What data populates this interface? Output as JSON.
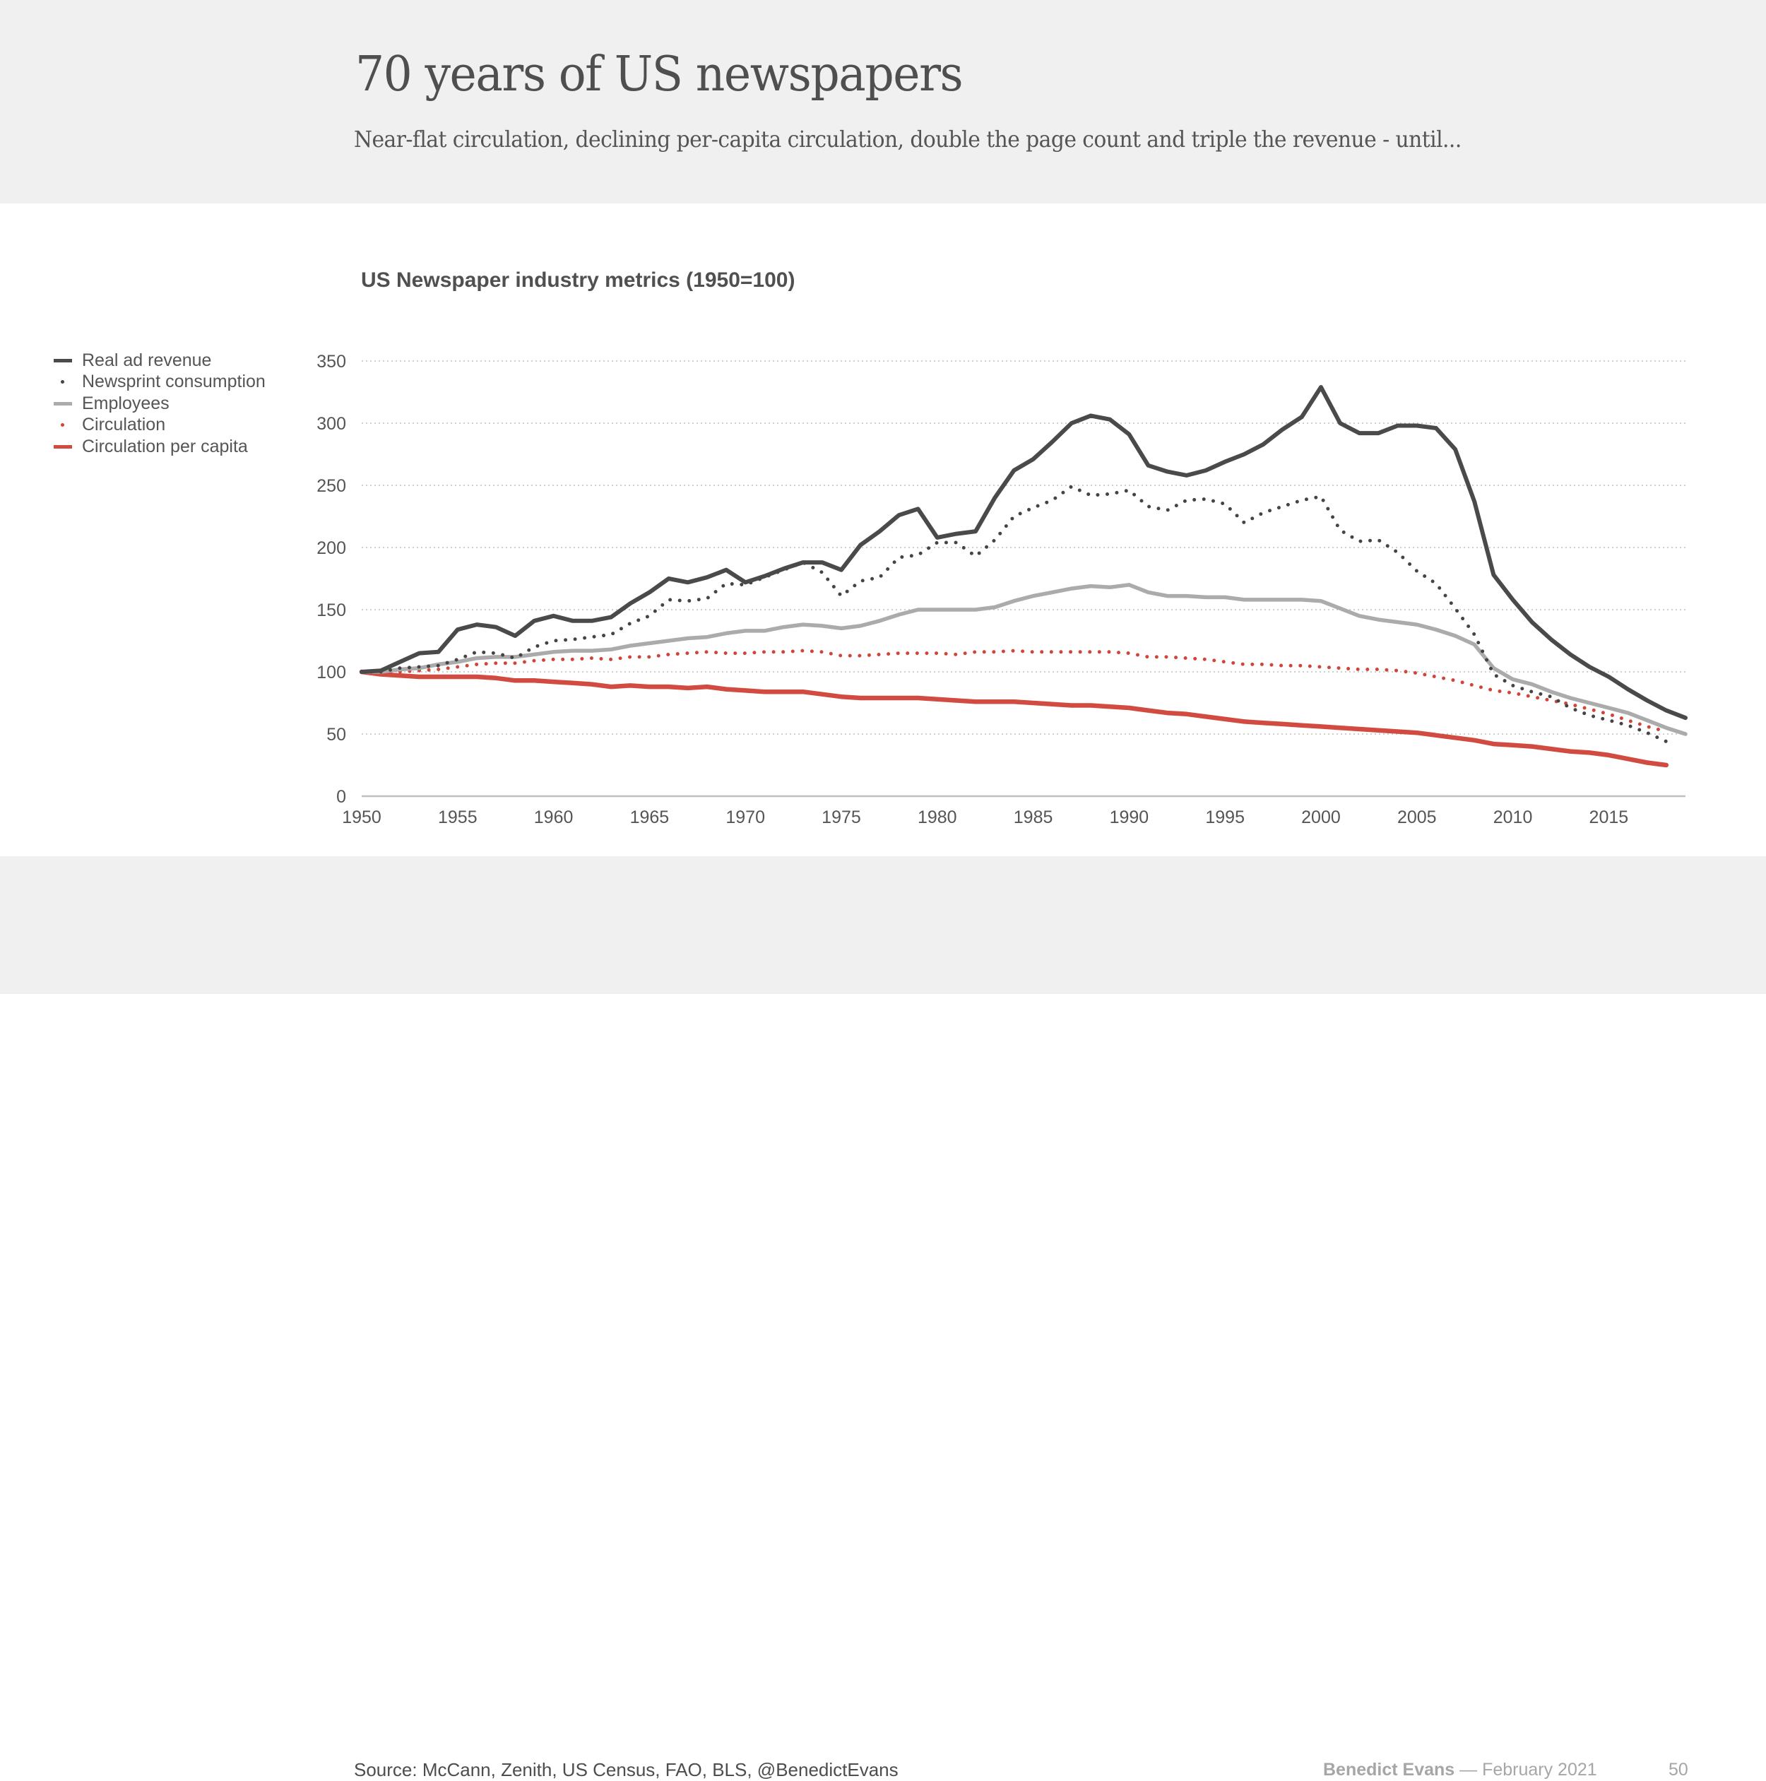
{
  "slide": {
    "title": "70 years of US newspapers",
    "subtitle": "Near-flat circulation, declining per-capita circulation, double the page count and triple the revenue - until...",
    "source": "Source: McCann, Zenith, US Census, FAO, BLS, @BenedictEvans",
    "author": "Benedict Evans",
    "date": " — February 2021",
    "page_number": "50"
  },
  "colors": {
    "real_ad_revenue": "#4a4a4a",
    "newsprint": "#444444",
    "employees": "#ababab",
    "circulation": "#d0453a",
    "circulation_per_capita": "#d14b40",
    "grid": "#bdbdbd",
    "axis": "#bfbfbf"
  },
  "chart_data": {
    "type": "line",
    "title": "US Newspaper industry metrics (1950=100)",
    "xlabel": "",
    "ylabel": "",
    "xlim": [
      1950,
      2019
    ],
    "ylim": [
      0,
      350
    ],
    "yticks": [
      0,
      50,
      100,
      150,
      200,
      250,
      300,
      350
    ],
    "xticks": [
      1950,
      1955,
      1960,
      1965,
      1970,
      1975,
      1980,
      1985,
      1990,
      1995,
      2000,
      2005,
      2010,
      2015
    ],
    "grid": "horizontal dotted",
    "legend_position": "left",
    "series": [
      {
        "name": "Real ad revenue",
        "style": "solid",
        "start_year": 1950,
        "values": [
          100,
          101,
          108,
          115,
          116,
          134,
          138,
          136,
          129,
          141,
          145,
          141,
          141,
          144,
          155,
          164,
          175,
          172,
          176,
          182,
          172,
          177,
          183,
          188,
          188,
          182,
          202,
          213,
          226,
          231,
          208,
          211,
          213,
          240,
          262,
          271,
          285,
          300,
          306,
          303,
          291,
          266,
          261,
          258,
          262,
          269,
          275,
          283,
          295,
          305,
          329,
          300,
          292,
          292,
          298,
          298,
          296,
          279,
          237,
          178,
          158,
          140,
          126,
          114,
          104,
          96,
          86,
          77,
          69,
          63
        ]
      },
      {
        "name": "Newsprint consumption",
        "style": "dotted",
        "start_year": 1950,
        "values": [
          100,
          100,
          103,
          104,
          105,
          110,
          116,
          115,
          111,
          120,
          125,
          126,
          128,
          130,
          139,
          145,
          158,
          157,
          159,
          171,
          170,
          176,
          182,
          188,
          180,
          161,
          173,
          176,
          192,
          194,
          204,
          204,
          193,
          206,
          225,
          232,
          238,
          249,
          242,
          243,
          246,
          233,
          230,
          238,
          239,
          235,
          220,
          228,
          233,
          238,
          241,
          214,
          205,
          206,
          196,
          181,
          171,
          151,
          130,
          98,
          89,
          84,
          80,
          71,
          65,
          61,
          57,
          51,
          44
        ]
      },
      {
        "name": "Employees",
        "style": "solid",
        "start_year": 1950,
        "values": [
          100,
          100,
          102,
          103,
          106,
          108,
          111,
          112,
          112,
          114,
          116,
          117,
          117,
          118,
          121,
          123,
          125,
          127,
          128,
          131,
          133,
          133,
          136,
          138,
          137,
          135,
          137,
          141,
          146,
          150,
          150,
          150,
          150,
          152,
          157,
          161,
          164,
          167,
          169,
          168,
          170,
          164,
          161,
          161,
          160,
          160,
          158,
          158,
          158,
          158,
          157,
          151,
          145,
          142,
          140,
          138,
          134,
          129,
          122,
          103,
          94,
          90,
          84,
          79,
          75,
          71,
          67,
          61,
          55,
          50
        ]
      },
      {
        "name": "Circulation",
        "style": "dotted",
        "start_year": 1950,
        "values": [
          100,
          100,
          100,
          101,
          102,
          104,
          106,
          107,
          107,
          109,
          110,
          110,
          111,
          110,
          112,
          112,
          114,
          115,
          116,
          115,
          115,
          116,
          116,
          117,
          116,
          113,
          113,
          114,
          115,
          115,
          115,
          114,
          116,
          116,
          117,
          116,
          116,
          116,
          116,
          116,
          115,
          112,
          112,
          111,
          110,
          108,
          106,
          106,
          105,
          105,
          104,
          103,
          102,
          102,
          101,
          99,
          96,
          93,
          89,
          85,
          83,
          80,
          77,
          74,
          70,
          66,
          61,
          56,
          52
        ]
      },
      {
        "name": "Circulation per capita",
        "style": "solid",
        "start_year": 1950,
        "values": [
          100,
          98,
          97,
          96,
          96,
          96,
          96,
          95,
          93,
          93,
          92,
          91,
          90,
          88,
          89,
          88,
          88,
          87,
          88,
          86,
          85,
          84,
          84,
          84,
          82,
          80,
          79,
          79,
          79,
          79,
          78,
          77,
          76,
          76,
          76,
          75,
          74,
          73,
          73,
          72,
          71,
          69,
          67,
          66,
          64,
          62,
          60,
          59,
          58,
          57,
          56,
          55,
          54,
          53,
          52,
          51,
          49,
          47,
          45,
          42,
          41,
          40,
          38,
          36,
          35,
          33,
          30,
          27,
          25
        ]
      }
    ]
  }
}
